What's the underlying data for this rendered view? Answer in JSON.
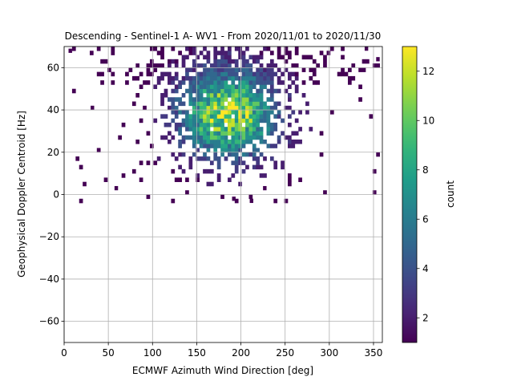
{
  "chart_data": {
    "type": "heatmap",
    "title": "Descending - Sentinel-1 A- WV1 - From 2020/11/01 to 2020/11/30",
    "xlabel": "ECMWF Azimuth Wind Direction [deg]",
    "ylabel": "Geophysical Doppler Centroid [Hz]",
    "xlim": [
      0,
      360
    ],
    "ylim": [
      -70,
      70
    ],
    "xticks": [
      0,
      50,
      100,
      150,
      200,
      250,
      300,
      350
    ],
    "yticks": [
      -60,
      -40,
      -20,
      0,
      20,
      40,
      60
    ],
    "grid": true,
    "colormap": "viridis",
    "colorbar": {
      "label": "count",
      "range": [
        1,
        13
      ],
      "ticks": [
        2,
        4,
        6,
        8,
        10,
        12
      ]
    },
    "bin_size": {
      "x": 4,
      "y": 2
    },
    "density_peak": {
      "x": 185,
      "y": 38
    },
    "density_spread": {
      "x": 38,
      "y": 14
    },
    "max_count": 13,
    "data_range": {
      "x": [
        5,
        358
      ],
      "y": [
        -4,
        70
      ]
    },
    "outliers": [
      {
        "x": 57,
        "y": 2,
        "count": 1
      },
      {
        "x": 30,
        "y": 40,
        "count": 1
      },
      {
        "x": 5,
        "y": 67,
        "count": 1
      },
      {
        "x": 340,
        "y": 68,
        "count": 1
      },
      {
        "x": 353,
        "y": 63,
        "count": 1
      },
      {
        "x": 210,
        "y": -4,
        "count": 1
      },
      {
        "x": 190,
        "y": -3,
        "count": 1
      },
      {
        "x": 225,
        "y": 2,
        "count": 1
      }
    ]
  }
}
